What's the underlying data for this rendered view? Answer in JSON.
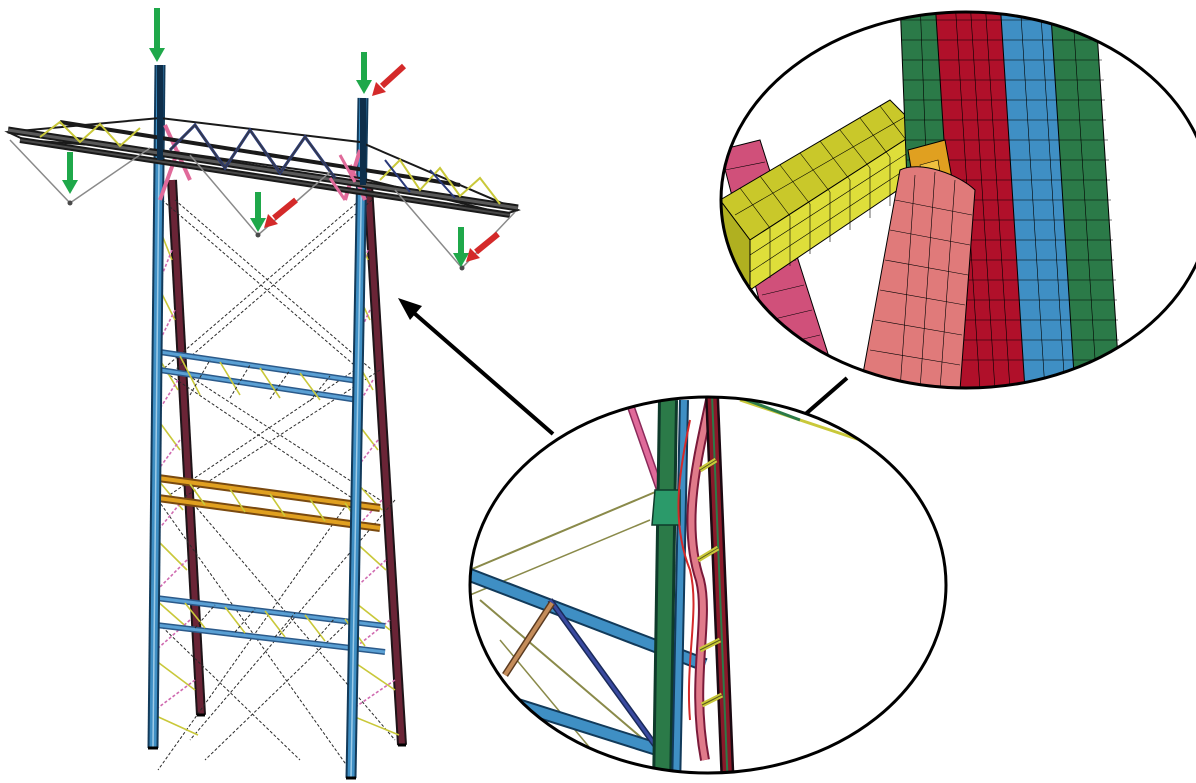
{
  "figure": {
    "labels": [],
    "colors": {
      "load_vertical": "#1fa84a",
      "load_lateral": "#d42a2a",
      "leg_blue": "#3f8fc4",
      "leg_green": "#2b7a48",
      "leg_dark_red": "#5a1a2a",
      "member_pink": "#e06a9a",
      "member_yellow": "#c9c83a",
      "member_orange": "#e0a020",
      "member_navy": "#2a3a7a",
      "member_tan": "#c48c5a",
      "mesh_red": "#b0102a",
      "mesh_salmon": "#e07a7a",
      "mesh_lime": "#cfcf2a",
      "outline": "#000000"
    },
    "icons": [
      "green-down-arrow",
      "red-diagonal-arrow",
      "black-pointer-arrow"
    ]
  }
}
